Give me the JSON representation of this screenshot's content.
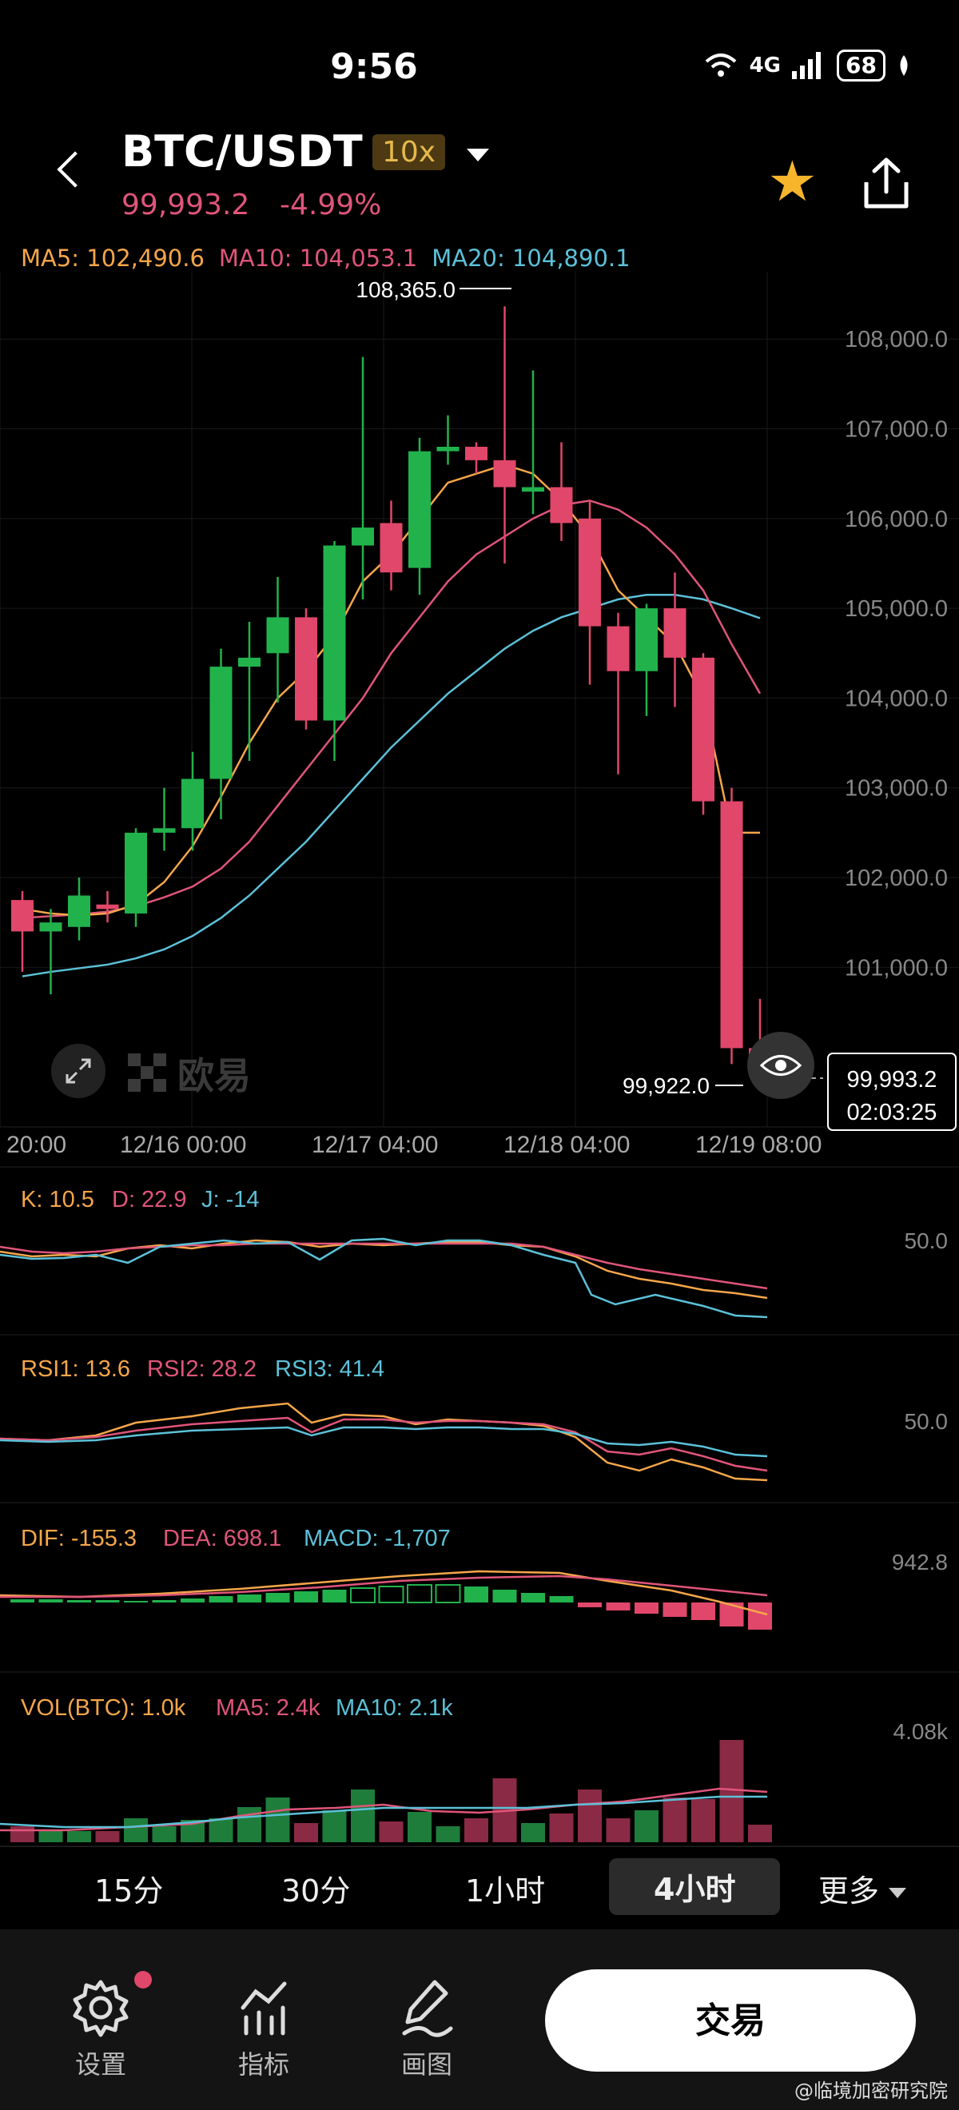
{
  "status": {
    "time": "9:56",
    "network": "4G",
    "battery": "68"
  },
  "header": {
    "pair": "BTC/USDT",
    "leverage": "10x",
    "price": "99,993.2",
    "change": "-4.99%"
  },
  "ma": {
    "ma5": "MA5: 102,490.6",
    "ma10": "MA10: 104,053.1",
    "ma20": "MA20: 104,890.1"
  },
  "colors": {
    "up": "#22b24c",
    "down": "#e0476a",
    "ma5": "#f5a64a",
    "ma10": "#e0557a",
    "ma20": "#5cc1d8"
  },
  "chart_data": {
    "type": "candlestick",
    "y_ticks": [
      "108,000.0",
      "107,000.0",
      "106,000.0",
      "105,000.0",
      "104,000.0",
      "103,000.0",
      "102,000.0",
      "101,000.0"
    ],
    "x_ticks": [
      "20:00",
      "12/16 00:00",
      "12/17 04:00",
      "12/18 04:00",
      "12/19 08:00"
    ],
    "high_label": "108,365.0",
    "low_label": "99,922.0",
    "last_price": "99,993.2",
    "countdown": "02:03:25",
    "ylim": [
      99400,
      108750
    ],
    "candles": [
      [
        101750,
        101400,
        101850,
        100950
      ],
      [
        101400,
        101500,
        101650,
        100700
      ],
      [
        101450,
        101800,
        102000,
        101300
      ],
      [
        101700,
        101650,
        101850,
        101500
      ],
      [
        101600,
        102500,
        102550,
        101450
      ],
      [
        102500,
        102550,
        103000,
        102300
      ],
      [
        102550,
        103100,
        103400,
        102300
      ],
      [
        103100,
        104350,
        104550,
        102650
      ],
      [
        104350,
        104450,
        104850,
        103300
      ],
      [
        104500,
        104900,
        105350,
        103950
      ],
      [
        104900,
        103750,
        105000,
        103650
      ],
      [
        103750,
        105700,
        105750,
        103300
      ],
      [
        105700,
        105900,
        107800,
        105100
      ],
      [
        105950,
        105400,
        106200,
        105200
      ],
      [
        105450,
        106750,
        106900,
        105150
      ],
      [
        106750,
        106800,
        107150,
        106600
      ],
      [
        106800,
        106650,
        106850,
        106500
      ],
      [
        106650,
        106350,
        108365,
        105500
      ],
      [
        106300,
        106350,
        107650,
        106050
      ],
      [
        106350,
        105950,
        106850,
        105750
      ],
      [
        106000,
        104800,
        106200,
        104150
      ],
      [
        104800,
        104300,
        104950,
        103150
      ],
      [
        104300,
        105000,
        105050,
        103800
      ],
      [
        105000,
        104450,
        105400,
        103900
      ],
      [
        104450,
        102850,
        104500,
        102700
      ],
      [
        102850,
        100100,
        103000,
        99922
      ],
      [
        100100,
        99993,
        100650,
        99950
      ]
    ],
    "ma5": [
      101650,
      101600,
      101580,
      101600,
      101700,
      101950,
      102350,
      102900,
      103500,
      104000,
      104300,
      104700,
      105300,
      105600,
      106000,
      106400,
      106500,
      106600,
      106500,
      106200,
      105800,
      105200,
      104900,
      104600,
      104000,
      102500,
      102500
    ],
    "ma10": [
      101550,
      101570,
      101590,
      101620,
      101680,
      101780,
      101900,
      102100,
      102400,
      102800,
      103200,
      103600,
      104000,
      104500,
      104900,
      105300,
      105600,
      105800,
      106000,
      106150,
      106200,
      106100,
      105900,
      105600,
      105200,
      104600,
      104050
    ],
    "ma20": [
      100900,
      100950,
      100990,
      101030,
      101100,
      101200,
      101350,
      101550,
      101800,
      102100,
      102400,
      102750,
      103100,
      103450,
      103750,
      104050,
      104300,
      104550,
      104750,
      104900,
      105000,
      105100,
      105150,
      105150,
      105100,
      105000,
      104890
    ]
  },
  "indicators": {
    "kdj": {
      "k": "K: 10.5",
      "d": "D: 22.9",
      "j": "J: -14",
      "axis": "50.0"
    },
    "rsi": {
      "r1": "RSI1: 13.6",
      "r2": "RSI2: 28.2",
      "r3": "RSI3: 41.4",
      "axis": "50.0"
    },
    "macd": {
      "dif": "DIF: -155.3",
      "dea": "DEA: 698.1",
      "macd": "MACD: -1,707",
      "axis": "942.8"
    },
    "vol": {
      "vol": "VOL(BTC): 1.0k",
      "ma5": "MA5: 2.4k",
      "ma10": "MA10: 2.1k",
      "axis": "4.08k"
    }
  },
  "timeframes": [
    "15分",
    "30分",
    "1小时",
    "4小时",
    "更多"
  ],
  "nav": {
    "settings": "设置",
    "indicators": "指标",
    "draw": "画图",
    "trade": "交易"
  },
  "brand": "欧易",
  "watermark": "@临境加密研究院"
}
